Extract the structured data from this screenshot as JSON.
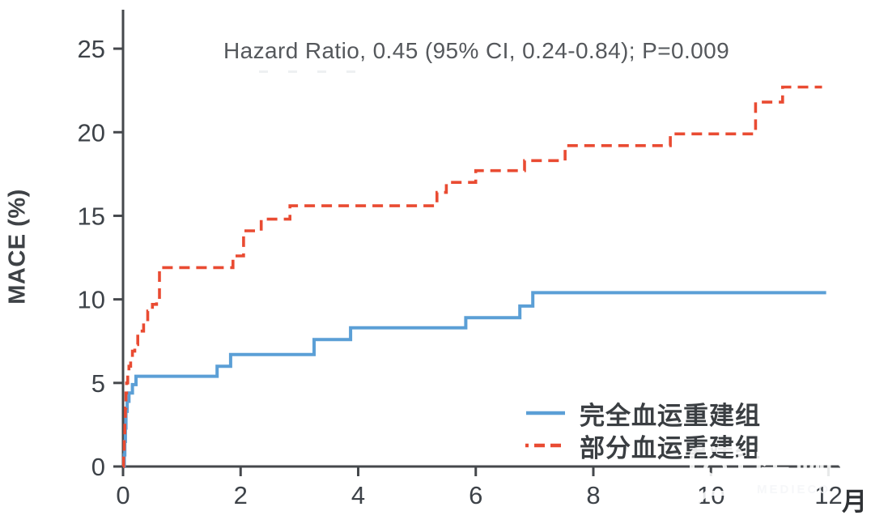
{
  "chart_data": {
    "type": "line",
    "subtype": "step-post",
    "title": "Hazard Ratio, 0.45 (95% CI, 0.24-0.84); P=0.009",
    "ylabel": "MACE (%)",
    "x_unit_label": "月",
    "xlim": [
      0,
      12.2
    ],
    "ylim": [
      0,
      27.33
    ],
    "xticks": [
      0,
      2,
      4,
      6,
      8,
      10,
      12
    ],
    "yticks": [
      0,
      5,
      10,
      15,
      20,
      25
    ],
    "grid": false,
    "legend_position": "lower right",
    "axis_color": "#45484c",
    "tick_label_color": "#3d4248",
    "series": [
      {
        "name": "完全血运重建组",
        "color": "#5b9fd6",
        "dash": "solid",
        "points": [
          [
            0,
            0
          ],
          [
            0.02,
            0.7
          ],
          [
            0.03,
            1.5
          ],
          [
            0.04,
            2.3
          ],
          [
            0.05,
            3.3
          ],
          [
            0.07,
            3.9
          ],
          [
            0.1,
            4.4
          ],
          [
            0.16,
            4.9
          ],
          [
            0.22,
            5.4
          ],
          [
            1.6,
            6.0
          ],
          [
            1.83,
            6.7
          ],
          [
            3.25,
            7.6
          ],
          [
            3.87,
            8.3
          ],
          [
            5.83,
            8.9
          ],
          [
            6.75,
            9.6
          ],
          [
            6.97,
            10.4
          ],
          [
            11.96,
            10.4
          ]
        ]
      },
      {
        "name": "部分血运重建组",
        "color": "#e94b32",
        "dash": "dashed",
        "points": [
          [
            0,
            0
          ],
          [
            0.01,
            0.8
          ],
          [
            0.02,
            1.7
          ],
          [
            0.03,
            2.6
          ],
          [
            0.04,
            3.5
          ],
          [
            0.05,
            4.4
          ],
          [
            0.06,
            5.0
          ],
          [
            0.08,
            5.5
          ],
          [
            0.1,
            6.0
          ],
          [
            0.13,
            6.5
          ],
          [
            0.16,
            6.9
          ],
          [
            0.2,
            7.3
          ],
          [
            0.25,
            7.8
          ],
          [
            0.3,
            8.1
          ],
          [
            0.35,
            8.7
          ],
          [
            0.42,
            9.3
          ],
          [
            0.5,
            9.7
          ],
          [
            0.57,
            10.0
          ],
          [
            0.62,
            11.9
          ],
          [
            1.87,
            12.6
          ],
          [
            2.05,
            14.1
          ],
          [
            2.35,
            14.8
          ],
          [
            2.84,
            15.6
          ],
          [
            5.34,
            16.4
          ],
          [
            5.5,
            17.0
          ],
          [
            6.0,
            17.7
          ],
          [
            6.83,
            18.3
          ],
          [
            7.52,
            19.2
          ],
          [
            9.31,
            19.9
          ],
          [
            10.76,
            21.8
          ],
          [
            11.22,
            22.7
          ],
          [
            11.89,
            22.7
          ]
        ]
      }
    ]
  },
  "watermark": {
    "brand": "医咖会",
    "sub": "MEDIECO",
    "icon": "chat-bubble-logo"
  }
}
